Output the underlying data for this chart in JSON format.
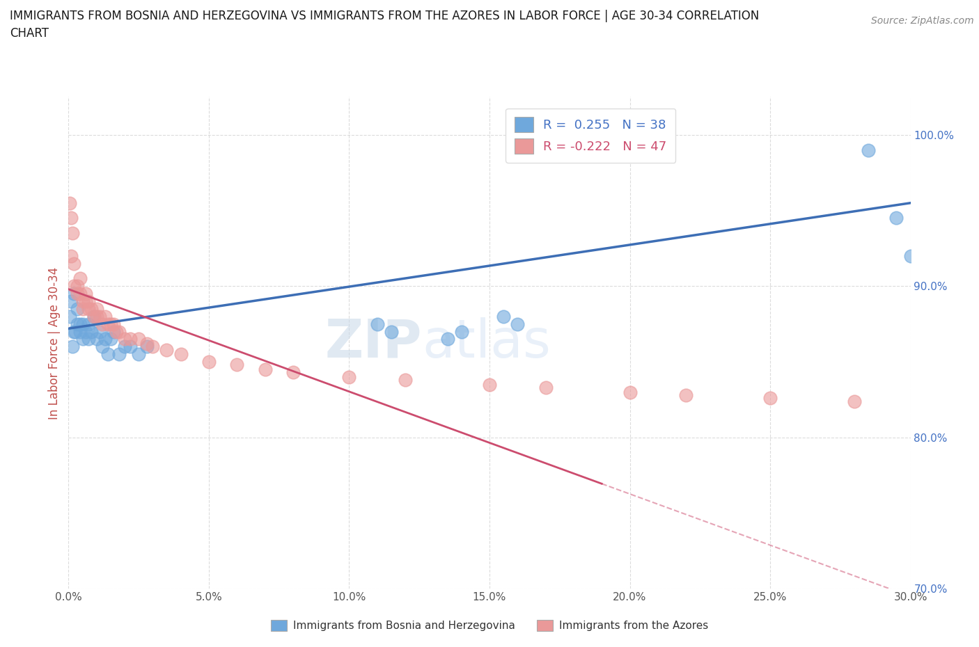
{
  "title_line1": "IMMIGRANTS FROM BOSNIA AND HERZEGOVINA VS IMMIGRANTS FROM THE AZORES IN LABOR FORCE | AGE 30-34 CORRELATION",
  "title_line2": "CHART",
  "source_text": "Source: ZipAtlas.com",
  "ylabel": "In Labor Force | Age 30-34",
  "xlim": [
    0.0,
    0.3
  ],
  "ylim": [
    0.828,
    1.025
  ],
  "xticks": [
    0.0,
    0.05,
    0.1,
    0.15,
    0.2,
    0.25,
    0.3
  ],
  "xticklabels": [
    "0.0%",
    "5.0%",
    "10.0%",
    "15.0%",
    "20.0%",
    "25.0%",
    "30.0%"
  ],
  "right_yticks": [
    0.7,
    0.8,
    0.9,
    1.0
  ],
  "right_yticklabels": [
    "70.0%",
    "80.0%",
    "90.0%",
    "100.0%"
  ],
  "bosnia_color": "#6fa8dc",
  "azores_color": "#ea9999",
  "bosnia_line_color": "#3d6eb5",
  "azores_line_color": "#cc4c6e",
  "watermark_zip": "ZIP",
  "watermark_atlas": "atlas",
  "legend_bosnia": "R =  0.255   N = 38",
  "legend_azores": "R = -0.222   N = 47",
  "legend_bosnia_label": "Immigrants from Bosnia and Herzegovina",
  "legend_azores_label": "Immigrants from the Azores",
  "bosnia_x": [
    0.0005,
    0.001,
    0.0015,
    0.002,
    0.002,
    0.0025,
    0.003,
    0.003,
    0.004,
    0.004,
    0.005,
    0.005,
    0.006,
    0.007,
    0.007,
    0.008,
    0.009,
    0.01,
    0.011,
    0.012,
    0.013,
    0.014,
    0.015,
    0.016,
    0.018,
    0.02,
    0.022,
    0.025,
    0.028,
    0.11,
    0.115,
    0.135,
    0.14,
    0.155,
    0.16,
    0.285,
    0.295,
    0.3
  ],
  "bosnia_y": [
    0.88,
    0.89,
    0.86,
    0.87,
    0.895,
    0.87,
    0.875,
    0.885,
    0.87,
    0.875,
    0.865,
    0.875,
    0.87,
    0.865,
    0.875,
    0.87,
    0.88,
    0.865,
    0.87,
    0.86,
    0.865,
    0.855,
    0.865,
    0.87,
    0.855,
    0.86,
    0.86,
    0.855,
    0.86,
    0.875,
    0.87,
    0.865,
    0.87,
    0.88,
    0.875,
    0.99,
    0.945,
    0.92
  ],
  "azores_x": [
    0.0005,
    0.001,
    0.001,
    0.0015,
    0.002,
    0.002,
    0.003,
    0.003,
    0.004,
    0.004,
    0.005,
    0.005,
    0.006,
    0.006,
    0.007,
    0.007,
    0.008,
    0.009,
    0.01,
    0.01,
    0.011,
    0.012,
    0.013,
    0.014,
    0.015,
    0.016,
    0.017,
    0.018,
    0.02,
    0.022,
    0.025,
    0.028,
    0.03,
    0.035,
    0.04,
    0.05,
    0.06,
    0.07,
    0.08,
    0.1,
    0.12,
    0.15,
    0.17,
    0.2,
    0.22,
    0.25,
    0.28
  ],
  "azores_y": [
    0.955,
    0.945,
    0.92,
    0.935,
    0.915,
    0.9,
    0.9,
    0.895,
    0.895,
    0.905,
    0.89,
    0.885,
    0.895,
    0.89,
    0.885,
    0.89,
    0.885,
    0.88,
    0.88,
    0.885,
    0.88,
    0.875,
    0.88,
    0.875,
    0.875,
    0.875,
    0.87,
    0.87,
    0.865,
    0.865,
    0.865,
    0.862,
    0.86,
    0.858,
    0.855,
    0.85,
    0.848,
    0.845,
    0.843,
    0.84,
    0.838,
    0.835,
    0.833,
    0.83,
    0.828,
    0.826,
    0.824
  ],
  "grid_color": "#cccccc",
  "background_color": "#ffffff",
  "ylabel_color": "#c0504d",
  "tick_color": "#4472c4"
}
